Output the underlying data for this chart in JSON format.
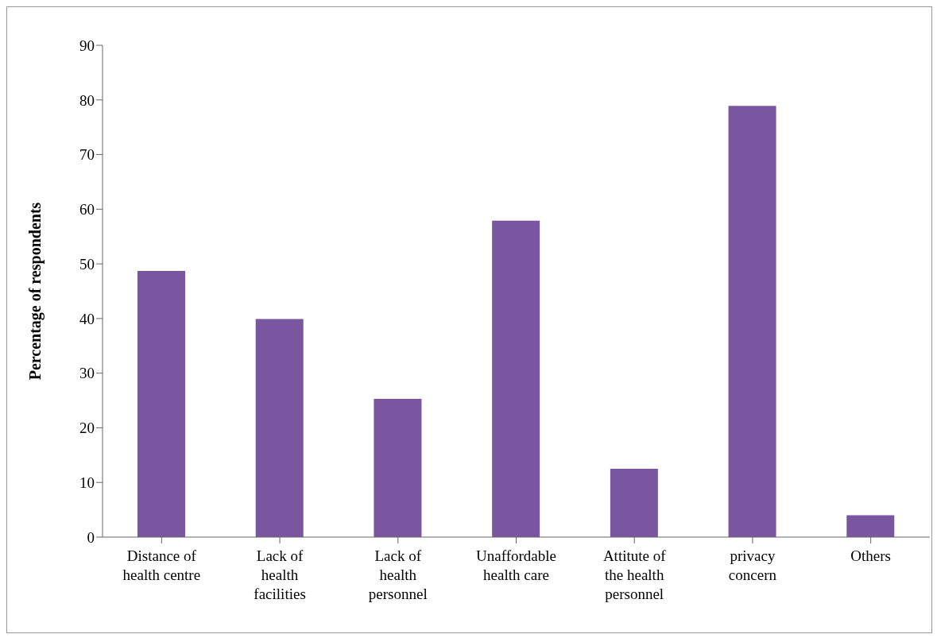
{
  "chart_data": {
    "type": "bar",
    "ylabel": "Percentage of respondents",
    "categories": [
      "Distance of health centre",
      "Lack of health facilities",
      "Lack of health personnel",
      "Unaffordable health care",
      "Attitute of the health personnel",
      "privacy concern",
      "Others"
    ],
    "values": [
      48.7,
      39.9,
      25.3,
      57.9,
      12.5,
      78.9,
      4.0
    ],
    "color": "#7a55a0",
    "ylim": [
      0,
      90
    ],
    "yticks": [
      0,
      10,
      20,
      30,
      40,
      50,
      60,
      70,
      80,
      90
    ],
    "grid": false,
    "legend": false
  }
}
